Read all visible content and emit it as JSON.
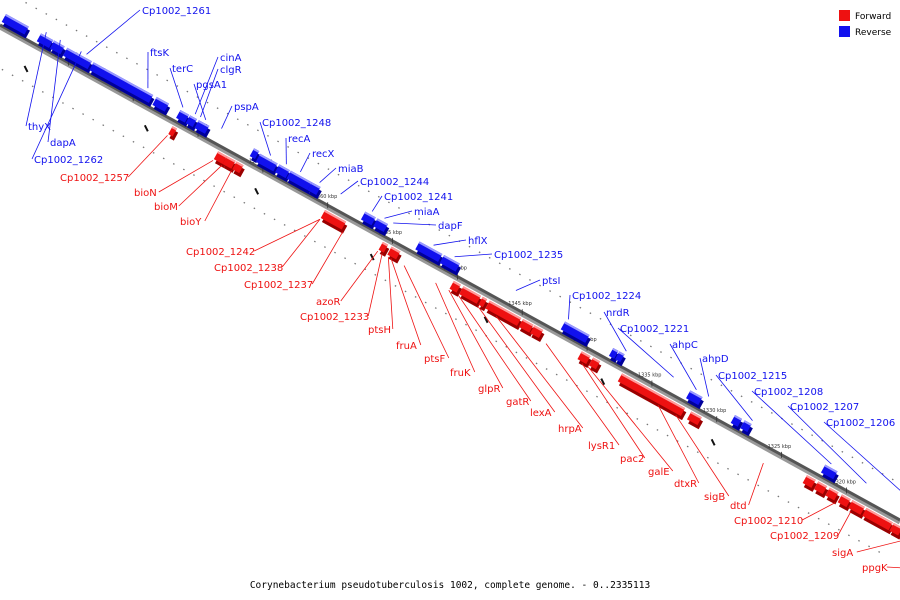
{
  "caption": "Corynebacterium pseudotuberculosis 1002, complete genome. - 0..2335113",
  "legend": [
    {
      "label": "Forward",
      "color": "#ee1111"
    },
    {
      "label": "Reverse",
      "color": "#1111ee"
    }
  ],
  "ticks": [
    "1380 kbp",
    "1375 kbp",
    "1370 kbp",
    "1365 kbp",
    "1360 kbp",
    "1355 kbp",
    "1350 kbp",
    "1345 kbp",
    "1340 kbp",
    "1335 kbp",
    "1330 kbp",
    "1325 kbp",
    "1320 kbp"
  ],
  "reverse_labels": [
    "Cp1002_1261",
    "ftsK",
    "terC",
    "cinA",
    "clgR",
    "pgsA1",
    "pspA",
    "Cp1002_1248",
    "recA",
    "recX",
    "miaB",
    "Cp1002_1244",
    "Cp1002_1241",
    "miaA",
    "dapF",
    "hflX",
    "Cp1002_1235",
    "ptsI",
    "Cp1002_1224",
    "nrdR",
    "Cp1002_1221",
    "ahpC",
    "ahpD",
    "Cp1002_1215",
    "Cp1002_1208",
    "Cp1002_1207",
    "Cp1002_1206",
    "thyX",
    "dapA",
    "Cp1002_1262"
  ],
  "forward_labels": [
    "Cp1002_1257",
    "bioN",
    "bioM",
    "bioY",
    "Cp1002_1242",
    "Cp1002_1238",
    "Cp1002_1237",
    "azoR",
    "Cp1002_1233",
    "ptsH",
    "fruA",
    "ptsF",
    "fruK",
    "glpR",
    "gatR",
    "lexA",
    "hrpA",
    "lysR1",
    "pac2",
    "galE",
    "dtxR",
    "sigB",
    "dtd",
    "Cp1002_1210",
    "Cp1002_1209",
    "sigA",
    "ppgK"
  ]
}
